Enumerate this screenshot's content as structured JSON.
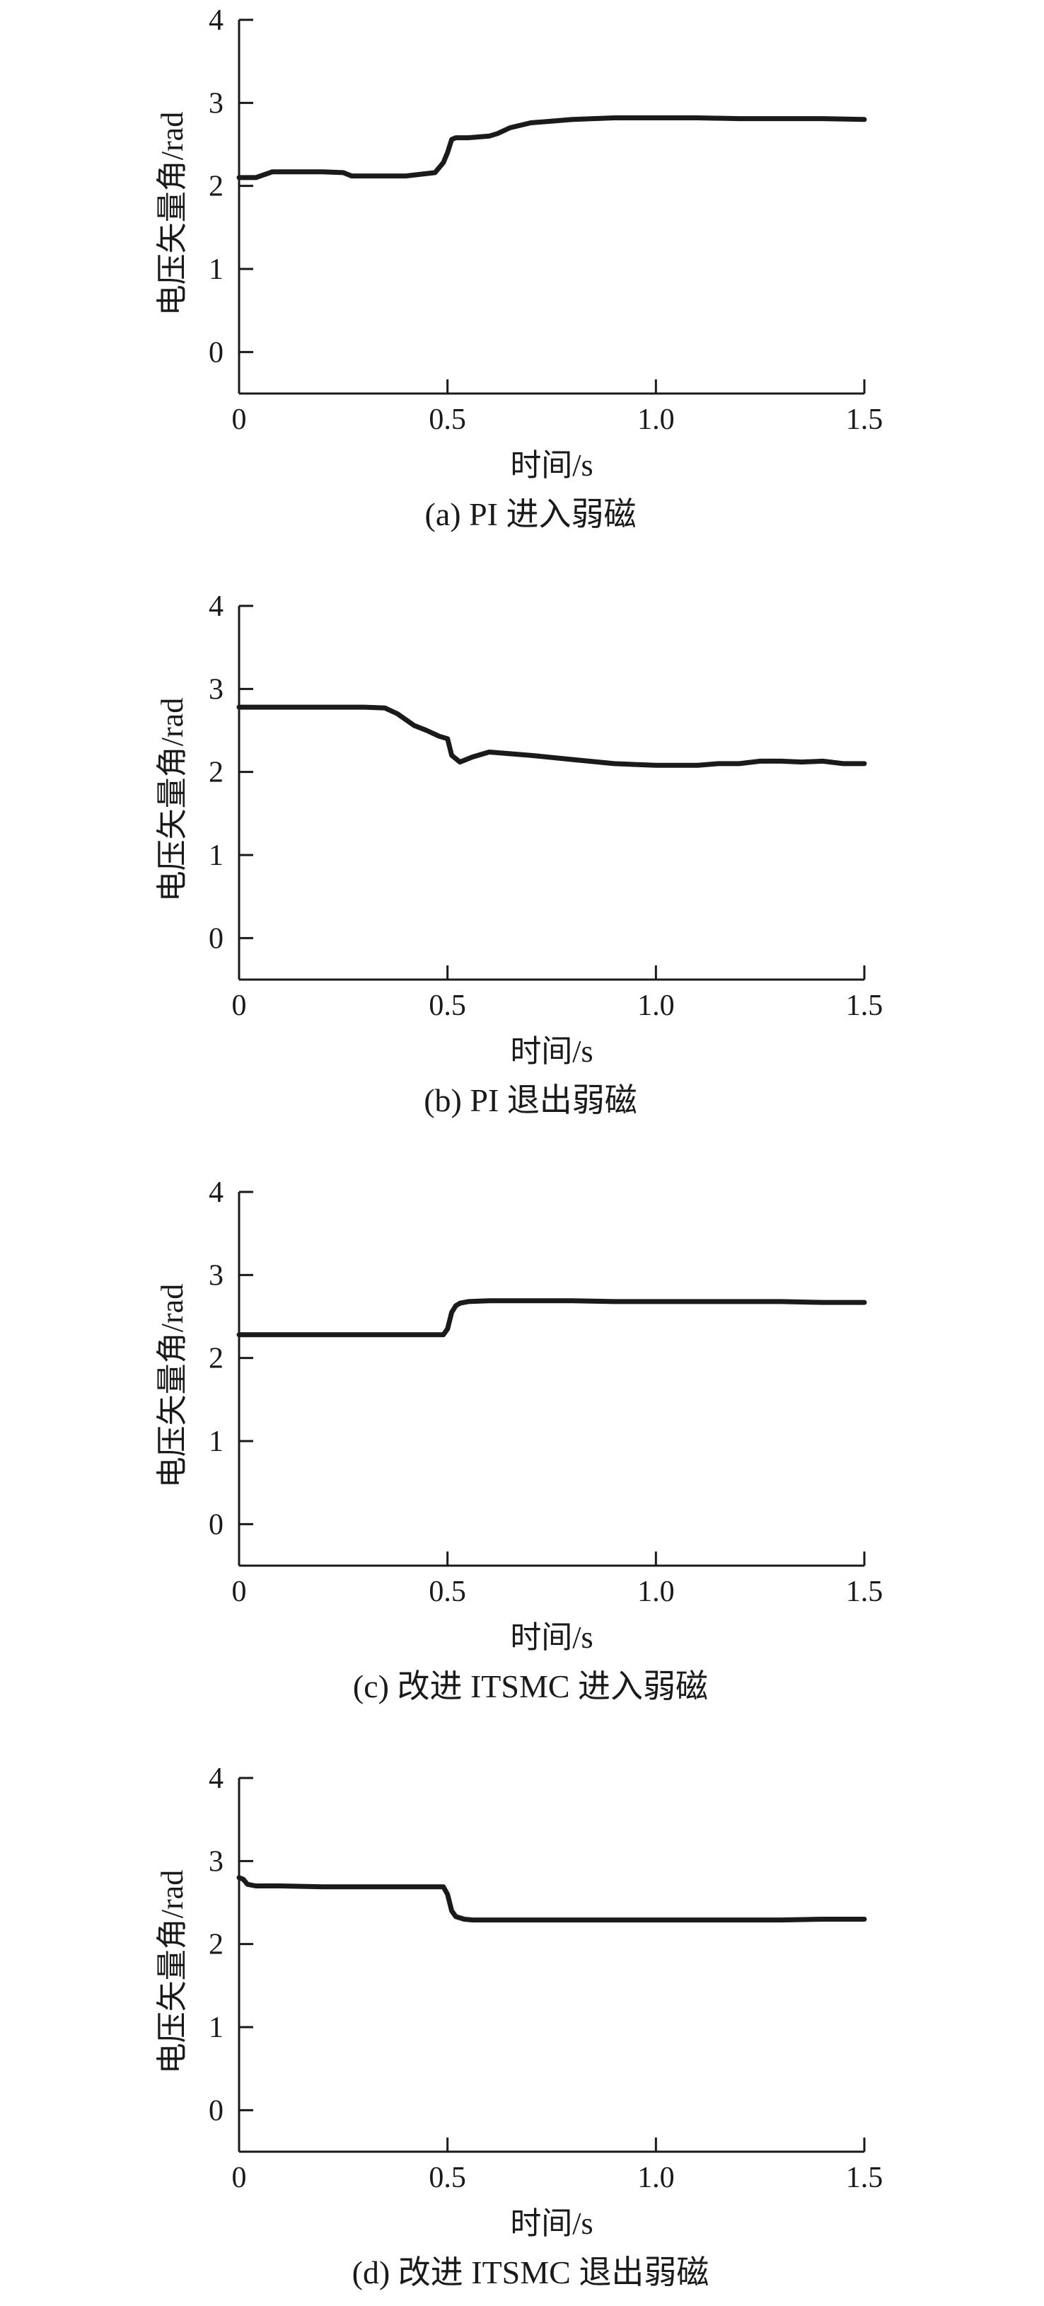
{
  "chart_data": [
    {
      "type": "line",
      "caption": "(a) PI 进入弱磁",
      "xlabel": "时间/s",
      "ylabel": "电压矢量角/rad",
      "xlim": [
        0,
        1.5
      ],
      "ylim": [
        -0.5,
        4
      ],
      "xticks": [
        "0",
        "0.5",
        "1.0",
        "1.5"
      ],
      "yticks": [
        "0",
        "1",
        "2",
        "3",
        "4"
      ],
      "grid": false,
      "series": [
        {
          "x": [
            0,
            0.04,
            0.08,
            0.12,
            0.2,
            0.25,
            0.27,
            0.3,
            0.4,
            0.47,
            0.49,
            0.5,
            0.51,
            0.52,
            0.55,
            0.6,
            0.62,
            0.65,
            0.7,
            0.8,
            0.9,
            1.0,
            1.1,
            1.2,
            1.3,
            1.4,
            1.5
          ],
          "y": [
            2.1,
            2.1,
            2.17,
            2.17,
            2.17,
            2.16,
            2.12,
            2.12,
            2.12,
            2.16,
            2.28,
            2.4,
            2.56,
            2.58,
            2.58,
            2.6,
            2.63,
            2.7,
            2.76,
            2.8,
            2.82,
            2.82,
            2.82,
            2.81,
            2.81,
            2.81,
            2.8
          ]
        }
      ]
    },
    {
      "type": "line",
      "caption": "(b) PI 退出弱磁",
      "xlabel": "时间/s",
      "ylabel": "电压矢量角/rad",
      "xlim": [
        0,
        1.5
      ],
      "ylim": [
        -0.5,
        4
      ],
      "xticks": [
        "0",
        "0.5",
        "1.0",
        "1.5"
      ],
      "yticks": [
        "0",
        "1",
        "2",
        "3",
        "4"
      ],
      "grid": false,
      "series": [
        {
          "x": [
            0,
            0.1,
            0.2,
            0.3,
            0.35,
            0.38,
            0.42,
            0.45,
            0.48,
            0.5,
            0.51,
            0.53,
            0.56,
            0.6,
            0.7,
            0.8,
            0.9,
            1.0,
            1.1,
            1.15,
            1.2,
            1.25,
            1.3,
            1.35,
            1.4,
            1.45,
            1.5
          ],
          "y": [
            2.78,
            2.78,
            2.78,
            2.78,
            2.77,
            2.7,
            2.56,
            2.5,
            2.43,
            2.4,
            2.2,
            2.12,
            2.18,
            2.24,
            2.2,
            2.15,
            2.1,
            2.08,
            2.08,
            2.1,
            2.1,
            2.13,
            2.13,
            2.12,
            2.13,
            2.1,
            2.1
          ]
        }
      ]
    },
    {
      "type": "line",
      "caption": "(c) 改进 ITSMC 进入弱磁",
      "xlabel": "时间/s",
      "ylabel": "电压矢量角/rad",
      "xlim": [
        0,
        1.5
      ],
      "ylim": [
        -0.5,
        4
      ],
      "xticks": [
        "0",
        "0.5",
        "1.0",
        "1.5"
      ],
      "yticks": [
        "0",
        "1",
        "2",
        "3",
        "4"
      ],
      "grid": false,
      "series": [
        {
          "x": [
            0,
            0.1,
            0.2,
            0.3,
            0.4,
            0.49,
            0.5,
            0.51,
            0.52,
            0.53,
            0.55,
            0.6,
            0.7,
            0.8,
            0.9,
            1.0,
            1.1,
            1.2,
            1.3,
            1.4,
            1.5
          ],
          "y": [
            2.28,
            2.28,
            2.28,
            2.28,
            2.28,
            2.28,
            2.35,
            2.55,
            2.63,
            2.66,
            2.68,
            2.69,
            2.69,
            2.69,
            2.68,
            2.68,
            2.68,
            2.68,
            2.68,
            2.67,
            2.67
          ]
        }
      ]
    },
    {
      "type": "line",
      "caption": "(d) 改进 ITSMC 退出弱磁",
      "xlabel": "时间/s",
      "ylabel": "电压矢量角/rad",
      "xlim": [
        0,
        1.5
      ],
      "ylim": [
        -0.5,
        4
      ],
      "xticks": [
        "0",
        "0.5",
        "1.0",
        "1.5"
      ],
      "yticks": [
        "0",
        "1",
        "2",
        "3",
        "4"
      ],
      "grid": false,
      "series": [
        {
          "x": [
            0,
            0.01,
            0.02,
            0.04,
            0.1,
            0.2,
            0.3,
            0.4,
            0.49,
            0.5,
            0.51,
            0.52,
            0.54,
            0.56,
            0.6,
            0.7,
            0.8,
            0.9,
            1.0,
            1.1,
            1.2,
            1.3,
            1.4,
            1.5
          ],
          "y": [
            2.8,
            2.78,
            2.72,
            2.7,
            2.7,
            2.69,
            2.69,
            2.69,
            2.69,
            2.6,
            2.4,
            2.33,
            2.3,
            2.29,
            2.29,
            2.29,
            2.29,
            2.29,
            2.29,
            2.29,
            2.29,
            2.29,
            2.3,
            2.3
          ]
        }
      ]
    }
  ]
}
